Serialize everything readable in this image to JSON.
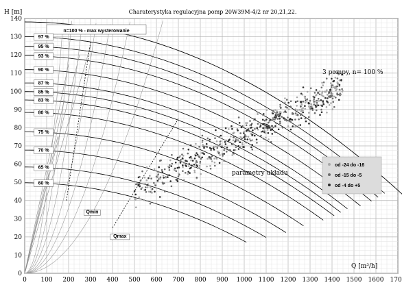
{
  "chart_data": {
    "type": "scatter",
    "title": "Charaterystyka  regulacyjna  pomp  20W39M-4/2  nr 20,21,22.",
    "ylabel": "H [m]",
    "xlabel": "Q [m³/h]",
    "xlim": [
      0,
      1700
    ],
    "ylim": [
      0,
      140
    ],
    "x_ticks": [
      0,
      100,
      200,
      300,
      400,
      500,
      600,
      700,
      800,
      900,
      1000,
      1100,
      1200,
      1300,
      1400,
      1500,
      1600,
      1700
    ],
    "y_ticks": [
      0,
      10,
      20,
      30,
      40,
      50,
      60,
      70,
      80,
      90,
      100,
      110,
      120,
      130,
      140
    ],
    "grid": true,
    "annotations": {
      "max_label": "n=100 % - max wysterowanie",
      "three_pumps": "3 pompy,  n= 100 %",
      "system_params": "parametry układu",
      "qmin": "Qmin",
      "qmax": "Qmax"
    },
    "speed_curves": [
      {
        "label": "97 %",
        "h0": 130.0
      },
      {
        "label": "95 %",
        "h0": 124.7
      },
      {
        "label": "93 %",
        "h0": 119.5
      },
      {
        "label": "90 %",
        "h0": 111.9
      },
      {
        "label": "87 %",
        "h0": 104.6
      },
      {
        "label": "85 %",
        "h0": 99.8
      },
      {
        "label": "83 %",
        "h0": 95.2
      },
      {
        "label": "80 %",
        "h0": 88.4
      },
      {
        "label": "75 %",
        "h0": 77.7
      },
      {
        "label": "70 %",
        "h0": 67.7
      },
      {
        "label": "65 %",
        "h0": 58.4
      },
      {
        "label": "60 %",
        "h0": 49.7
      }
    ],
    "curve_full": {
      "label": "n=100 %",
      "h0": 138.1
    },
    "legend": {
      "position": "right",
      "entries": [
        {
          "name": "od -24 do -16",
          "color": "#a8a8a8"
        },
        {
          "name": "od -15 do -5",
          "color": "#6e6e6e"
        },
        {
          "name": "od -4 do +5",
          "color": "#2e2e2e"
        }
      ]
    },
    "scatter_trend": {
      "x_range": [
        500,
        1450
      ],
      "y_at_x_start": 45,
      "y_at_x_end": 103,
      "count": 650
    }
  }
}
